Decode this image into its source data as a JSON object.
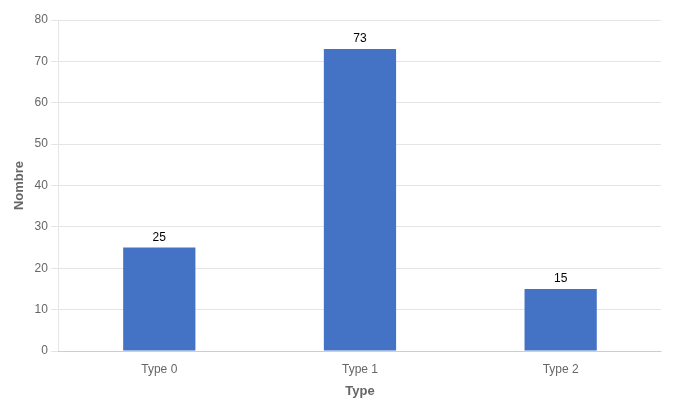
{
  "chart_data": {
    "type": "bar",
    "categories": [
      "Type 0",
      "Type 1",
      "Type 2"
    ],
    "values": [
      25,
      73,
      15
    ],
    "color": "#4472C4",
    "xlabel": "Type",
    "ylabel": "Nombre",
    "ylim": [
      0,
      80
    ],
    "yticks": [
      0,
      10,
      20,
      30,
      40,
      50,
      60,
      70,
      80
    ],
    "grid": true,
    "data_labels": true
  }
}
